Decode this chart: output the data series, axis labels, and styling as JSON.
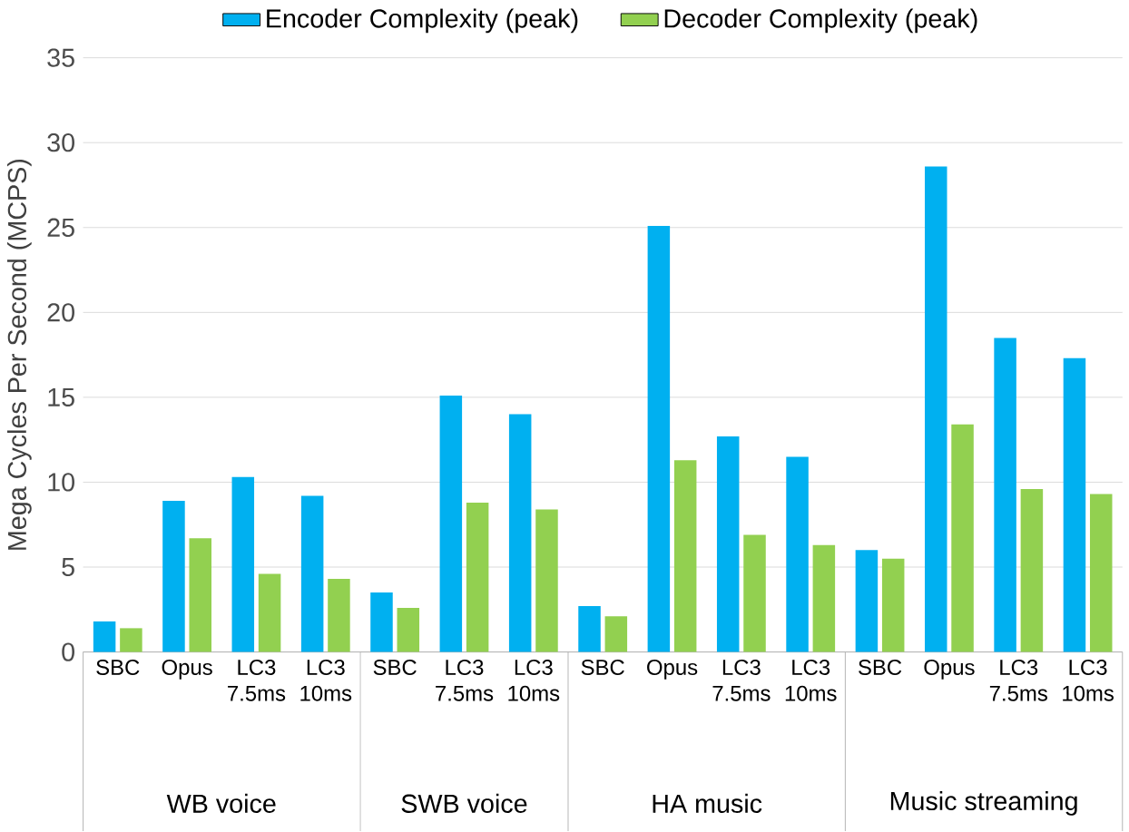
{
  "chart_data": {
    "type": "bar",
    "ylabel": "Mega Cycles Per Second (MCPS)",
    "categories": [
      "SBC",
      "Opus",
      "LC3 7.5ms",
      "LC3 10ms",
      "SBC",
      "LC3 7.5ms",
      "LC3 10ms",
      "SBC",
      "Opus",
      "LC3 7.5ms",
      "LC3 10ms",
      "SBC",
      "Opus",
      "LC3 7.5ms",
      "LC3 10ms"
    ],
    "series": [
      {
        "name": "Encoder Complexity (peak)",
        "color": "#00b0f0",
        "values": [
          1.8,
          8.9,
          10.3,
          9.2,
          3.5,
          15.1,
          14.0,
          2.7,
          25.1,
          12.7,
          11.5,
          6.0,
          28.6,
          18.5,
          17.3
        ]
      },
      {
        "name": "Decoder Complexity (peak)",
        "color": "#92d050",
        "values": [
          1.4,
          6.7,
          4.6,
          4.3,
          2.6,
          8.8,
          8.4,
          2.1,
          11.3,
          6.9,
          6.3,
          5.5,
          13.4,
          9.6,
          9.3
        ]
      }
    ],
    "annotations": [
      "WB voice",
      "SWB voice",
      "HA music",
      "Music streaming"
    ],
    "ylim": [
      0,
      35
    ],
    "yticks": [
      0,
      5,
      10,
      15,
      20,
      25,
      30,
      35
    ],
    "grid": "y",
    "legend": "top"
  }
}
